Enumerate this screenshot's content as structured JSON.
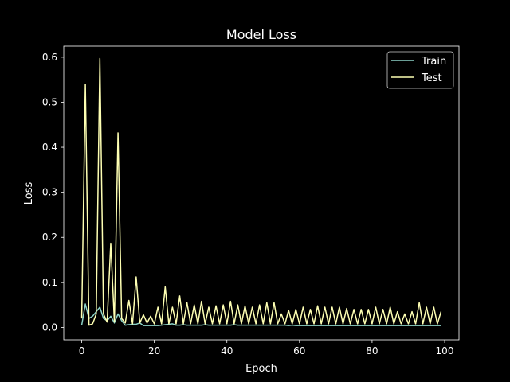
{
  "chart_data": {
    "type": "line",
    "title": "Model Loss",
    "xlabel": "Epoch",
    "ylabel": "Loss",
    "xlim": [
      -4.95,
      103.95
    ],
    "ylim": [
      -0.0275,
      0.6245
    ],
    "xticks": [
      0,
      20,
      40,
      60,
      80,
      100
    ],
    "xtick_labels": [
      "0",
      "20",
      "40",
      "60",
      "80",
      "100"
    ],
    "yticks": [
      0.0,
      0.1,
      0.2,
      0.3,
      0.4,
      0.5,
      0.6
    ],
    "ytick_labels": [
      "0.0",
      "0.1",
      "0.2",
      "0.3",
      "0.4",
      "0.5",
      "0.6"
    ],
    "grid": false,
    "legend_position": "top-right",
    "background": "#000000",
    "foreground": "#ffffff",
    "x": [
      0,
      1,
      2,
      3,
      4,
      5,
      6,
      7,
      8,
      9,
      10,
      11,
      12,
      13,
      14,
      15,
      16,
      17,
      18,
      19,
      20,
      21,
      22,
      23,
      24,
      25,
      26,
      27,
      28,
      29,
      30,
      31,
      32,
      33,
      34,
      35,
      36,
      37,
      38,
      39,
      40,
      41,
      42,
      43,
      44,
      45,
      46,
      47,
      48,
      49,
      50,
      51,
      52,
      53,
      54,
      55,
      56,
      57,
      58,
      59,
      60,
      61,
      62,
      63,
      64,
      65,
      66,
      67,
      68,
      69,
      70,
      71,
      72,
      73,
      74,
      75,
      76,
      77,
      78,
      79,
      80,
      81,
      82,
      83,
      84,
      85,
      86,
      87,
      88,
      89,
      90,
      91,
      92,
      93,
      94,
      95,
      96,
      97,
      98,
      99
    ],
    "series": [
      {
        "name": "Train",
        "color": "#8dd3c7",
        "values": [
          0.005,
          0.052,
          0.02,
          0.025,
          0.035,
          0.045,
          0.02,
          0.015,
          0.025,
          0.01,
          0.03,
          0.015,
          0.005,
          0.006,
          0.007,
          0.007,
          0.01,
          0.004,
          0.004,
          0.004,
          0.004,
          0.004,
          0.005,
          0.006,
          0.007,
          0.008,
          0.005,
          0.005,
          0.006,
          0.005,
          0.005,
          0.005,
          0.005,
          0.005,
          0.006,
          0.005,
          0.005,
          0.005,
          0.005,
          0.005,
          0.005,
          0.005,
          0.006,
          0.005,
          0.005,
          0.005,
          0.005,
          0.005,
          0.005,
          0.005,
          0.005,
          0.005,
          0.005,
          0.005,
          0.005,
          0.005,
          0.005,
          0.004,
          0.005,
          0.004,
          0.004,
          0.004,
          0.004,
          0.004,
          0.004,
          0.004,
          0.004,
          0.004,
          0.004,
          0.004,
          0.004,
          0.004,
          0.004,
          0.004,
          0.004,
          0.004,
          0.004,
          0.004,
          0.004,
          0.004,
          0.004,
          0.004,
          0.004,
          0.004,
          0.004,
          0.004,
          0.004,
          0.004,
          0.004,
          0.004,
          0.004,
          0.004,
          0.004,
          0.004,
          0.004,
          0.004,
          0.004,
          0.004,
          0.004,
          0.004
        ]
      },
      {
        "name": "Test",
        "color": "#feffb3",
        "values": [
          0.02,
          0.54,
          0.005,
          0.008,
          0.03,
          0.597,
          0.03,
          0.012,
          0.187,
          0.012,
          0.432,
          0.02,
          0.01,
          0.06,
          0.008,
          0.112,
          0.01,
          0.028,
          0.01,
          0.025,
          0.008,
          0.045,
          0.008,
          0.09,
          0.008,
          0.045,
          0.008,
          0.07,
          0.008,
          0.055,
          0.008,
          0.05,
          0.008,
          0.058,
          0.008,
          0.045,
          0.008,
          0.048,
          0.008,
          0.05,
          0.008,
          0.058,
          0.008,
          0.05,
          0.008,
          0.048,
          0.008,
          0.045,
          0.008,
          0.05,
          0.008,
          0.055,
          0.008,
          0.055,
          0.008,
          0.03,
          0.008,
          0.038,
          0.008,
          0.04,
          0.008,
          0.045,
          0.008,
          0.04,
          0.008,
          0.048,
          0.008,
          0.045,
          0.008,
          0.045,
          0.008,
          0.045,
          0.008,
          0.042,
          0.008,
          0.04,
          0.008,
          0.04,
          0.008,
          0.04,
          0.008,
          0.045,
          0.008,
          0.04,
          0.008,
          0.045,
          0.008,
          0.035,
          0.008,
          0.03,
          0.008,
          0.035,
          0.008,
          0.055,
          0.008,
          0.045,
          0.008,
          0.045,
          0.008,
          0.035
        ]
      }
    ]
  }
}
